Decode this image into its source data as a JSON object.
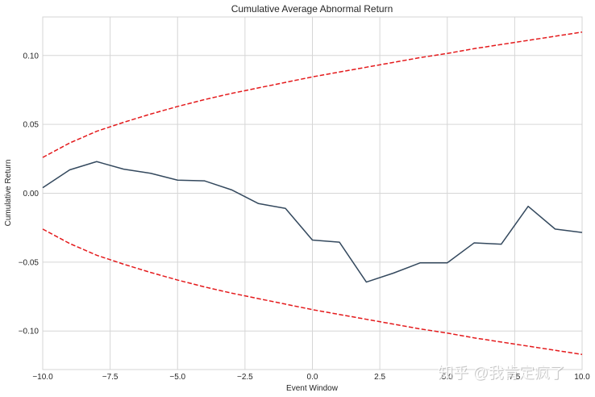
{
  "chart_data": {
    "type": "line",
    "title": "Cumulative Average Abnormal Return",
    "xlabel": "Event Window",
    "ylabel": "Cumulative Return",
    "xlim": [
      -10,
      10
    ],
    "ylim": [
      -0.128,
      0.128
    ],
    "grid": true,
    "x_ticks": [
      -10,
      -7.5,
      -5,
      -2.5,
      0,
      2.5,
      5,
      7.5,
      10
    ],
    "x_tick_labels": [
      "−10.0",
      "−7.5",
      "−5.0",
      "−2.5",
      "0.0",
      "2.5",
      "5.0",
      "7.5",
      "10.0"
    ],
    "y_ticks": [
      -0.1,
      -0.05,
      0.0,
      0.05,
      0.1
    ],
    "y_tick_labels": [
      "−0.10",
      "−0.05",
      "0.00",
      "0.05",
      "0.10"
    ],
    "x": [
      -10,
      -9,
      -8,
      -7,
      -6,
      -5,
      -4,
      -3,
      -2,
      -1,
      0,
      1,
      2,
      3,
      4,
      5,
      6,
      7,
      8,
      9,
      10
    ],
    "series": [
      {
        "style": "solid",
        "color": "#34495e",
        "values": [
          0.004,
          0.017,
          0.023,
          0.0175,
          0.0145,
          0.0095,
          0.009,
          0.0025,
          -0.0075,
          -0.011,
          -0.034,
          -0.0355,
          -0.0645,
          -0.058,
          -0.0505,
          -0.0505,
          -0.036,
          -0.037,
          -0.0095,
          -0.026,
          -0.0285
        ]
      },
      {
        "style": "dashed",
        "color": "#e41a1c",
        "values": [
          0.026,
          0.0365,
          0.045,
          0.0515,
          0.0575,
          0.063,
          0.068,
          0.0725,
          0.0765,
          0.0805,
          0.0845,
          0.088,
          0.0915,
          0.095,
          0.0985,
          0.1015,
          0.105,
          0.108,
          0.111,
          0.114,
          0.117
        ]
      },
      {
        "style": "dashed",
        "color": "#e41a1c",
        "values": [
          -0.026,
          -0.0365,
          -0.045,
          -0.0515,
          -0.0575,
          -0.063,
          -0.068,
          -0.0725,
          -0.0765,
          -0.0805,
          -0.0845,
          -0.088,
          -0.0915,
          -0.095,
          -0.0985,
          -0.1015,
          -0.105,
          -0.108,
          -0.111,
          -0.114,
          -0.117
        ]
      }
    ]
  },
  "watermark": {
    "text": "知乎 @我肯定疯了"
  }
}
